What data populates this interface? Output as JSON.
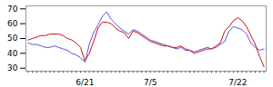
{
  "chart_data": {
    "type": "line",
    "categories": [
      null,
      null,
      null,
      null,
      null,
      null,
      null,
      null,
      null,
      null,
      null,
      null,
      null,
      "6/21",
      null,
      null,
      null,
      null,
      null,
      null,
      null,
      null,
      null,
      null,
      null,
      null,
      null,
      null,
      "7/5",
      null,
      null,
      null,
      null,
      null,
      null,
      null,
      null,
      null,
      null,
      null,
      null,
      null,
      null,
      null,
      null,
      null,
      null,
      null,
      "7/22",
      null,
      null,
      null,
      null,
      null,
      null
    ],
    "series": [
      {
        "color": "#5555dd",
        "values": [
          47,
          46,
          46,
          45,
          44,
          44,
          45,
          44,
          43,
          42,
          40,
          39,
          37,
          34,
          46,
          54,
          59,
          65,
          68,
          63,
          60,
          57,
          55,
          53,
          56,
          55,
          53,
          51,
          49,
          48,
          47,
          46,
          45,
          44,
          43,
          44,
          42,
          42,
          41,
          42,
          43,
          44,
          43,
          44,
          46,
          48,
          55,
          58,
          57,
          56,
          53,
          47,
          44,
          42,
          43
        ]
      },
      {
        "color": "#cc1111",
        "values": [
          49,
          50,
          51,
          52,
          52,
          53,
          53,
          53,
          52,
          50,
          49,
          47,
          44,
          35,
          40,
          48,
          57,
          61,
          61,
          60,
          57,
          55,
          54,
          50,
          55,
          54,
          52,
          50,
          48,
          47,
          46,
          45,
          45,
          44,
          44,
          45,
          43,
          42,
          40,
          41,
          42,
          43,
          43,
          45,
          47,
          55,
          58,
          62,
          64,
          62,
          58,
          52,
          46,
          38,
          31
        ]
      }
    ],
    "ylim": [
      28,
      72
    ],
    "yticks": [
      30,
      40,
      50,
      60,
      70
    ]
  }
}
